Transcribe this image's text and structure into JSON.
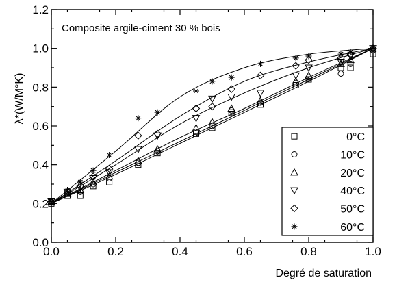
{
  "chart_data": {
    "type": "scatter",
    "title": "Composite argile-ciment 30 % bois",
    "xlabel": "Degré de saturation",
    "ylabel": "λ*(W/M°K)",
    "xlim": [
      0.0,
      1.0
    ],
    "ylim": [
      0.0,
      1.2
    ],
    "x_ticks": [
      0.0,
      0.2,
      0.4,
      0.6,
      0.8,
      1.0
    ],
    "y_ticks": [
      0.0,
      0.2,
      0.4,
      0.6,
      0.8,
      1.0,
      1.2
    ],
    "x_tick_labels": [
      "0.0",
      "0.2",
      "0.4",
      "0.6",
      "0.8",
      "1.0"
    ],
    "y_tick_labels": [
      "0.0",
      "0.2",
      "0.4",
      "0.6",
      "0.8",
      "1.0",
      "1.2"
    ],
    "legend_position": "bottom-right",
    "grid": false,
    "series": [
      {
        "name": "0°C",
        "marker": "square",
        "points": [
          [
            0.0,
            0.2
          ],
          [
            0.05,
            0.24
          ],
          [
            0.09,
            0.24
          ],
          [
            0.13,
            0.29
          ],
          [
            0.18,
            0.31
          ],
          [
            0.27,
            0.4
          ],
          [
            0.33,
            0.46
          ],
          [
            0.45,
            0.56
          ],
          [
            0.5,
            0.59
          ],
          [
            0.56,
            0.67
          ],
          [
            0.65,
            0.71
          ],
          [
            0.76,
            0.81
          ],
          [
            0.8,
            0.84
          ],
          [
            0.9,
            0.9
          ],
          [
            0.93,
            0.9
          ],
          [
            1.0,
            0.97
          ]
        ],
        "fit": [
          [
            0.0,
            0.2
          ],
          [
            0.2,
            0.35
          ],
          [
            0.4,
            0.51
          ],
          [
            0.6,
            0.67
          ],
          [
            0.8,
            0.83
          ],
          [
            1.0,
            1.0
          ]
        ]
      },
      {
        "name": "10°C",
        "marker": "circle",
        "points": [
          [
            0.0,
            0.21
          ],
          [
            0.05,
            0.25
          ],
          [
            0.09,
            0.26
          ],
          [
            0.13,
            0.3
          ],
          [
            0.18,
            0.33
          ],
          [
            0.27,
            0.41
          ],
          [
            0.33,
            0.47
          ],
          [
            0.45,
            0.57
          ],
          [
            0.5,
            0.6
          ],
          [
            0.56,
            0.68
          ],
          [
            0.65,
            0.72
          ],
          [
            0.76,
            0.82
          ],
          [
            0.8,
            0.85
          ],
          [
            0.9,
            0.87
          ],
          [
            0.93,
            0.92
          ],
          [
            1.0,
            0.99
          ]
        ],
        "fit": [
          [
            0.0,
            0.2
          ],
          [
            0.2,
            0.36
          ],
          [
            0.4,
            0.52
          ],
          [
            0.6,
            0.68
          ],
          [
            0.8,
            0.84
          ],
          [
            1.0,
            1.0
          ]
        ]
      },
      {
        "name": "20°C",
        "marker": "triangle-up",
        "points": [
          [
            0.0,
            0.21
          ],
          [
            0.05,
            0.25
          ],
          [
            0.09,
            0.27
          ],
          [
            0.13,
            0.31
          ],
          [
            0.18,
            0.34
          ],
          [
            0.27,
            0.42
          ],
          [
            0.33,
            0.48
          ],
          [
            0.45,
            0.59
          ],
          [
            0.5,
            0.62
          ],
          [
            0.56,
            0.69
          ],
          [
            0.65,
            0.73
          ],
          [
            0.76,
            0.83
          ],
          [
            0.8,
            0.86
          ],
          [
            0.9,
            0.92
          ],
          [
            0.93,
            0.94
          ],
          [
            1.0,
            1.0
          ]
        ],
        "fit": [
          [
            0.0,
            0.2
          ],
          [
            0.2,
            0.37
          ],
          [
            0.4,
            0.54
          ],
          [
            0.6,
            0.69
          ],
          [
            0.8,
            0.85
          ],
          [
            1.0,
            1.0
          ]
        ]
      },
      {
        "name": "40°C",
        "marker": "triangle-down",
        "points": [
          [
            0.0,
            0.21
          ],
          [
            0.05,
            0.26
          ],
          [
            0.09,
            0.28
          ],
          [
            0.13,
            0.33
          ],
          [
            0.18,
            0.36
          ],
          [
            0.27,
            0.48
          ],
          [
            0.33,
            0.55
          ],
          [
            0.45,
            0.64
          ],
          [
            0.5,
            0.74
          ],
          [
            0.56,
            0.75
          ],
          [
            0.65,
            0.77
          ],
          [
            0.76,
            0.86
          ],
          [
            0.8,
            0.9
          ],
          [
            0.9,
            0.93
          ],
          [
            0.93,
            0.96
          ],
          [
            1.0,
            1.0
          ]
        ],
        "fit": [
          [
            0.0,
            0.2
          ],
          [
            0.2,
            0.4
          ],
          [
            0.4,
            0.61
          ],
          [
            0.6,
            0.77
          ],
          [
            0.8,
            0.9
          ],
          [
            1.0,
            1.0
          ]
        ]
      },
      {
        "name": "50°C",
        "marker": "diamond",
        "points": [
          [
            0.0,
            0.21
          ],
          [
            0.05,
            0.26
          ],
          [
            0.09,
            0.29
          ],
          [
            0.13,
            0.34
          ],
          [
            0.18,
            0.38
          ],
          [
            0.27,
            0.55
          ],
          [
            0.33,
            0.56
          ],
          [
            0.45,
            0.69
          ],
          [
            0.5,
            0.7
          ],
          [
            0.56,
            0.79
          ],
          [
            0.65,
            0.86
          ],
          [
            0.76,
            0.91
          ],
          [
            0.8,
            0.94
          ],
          [
            0.9,
            0.95
          ],
          [
            0.93,
            0.97
          ],
          [
            1.0,
            1.0
          ]
        ],
        "fit": [
          [
            0.0,
            0.2
          ],
          [
            0.2,
            0.42
          ],
          [
            0.4,
            0.65
          ],
          [
            0.6,
            0.83
          ],
          [
            0.8,
            0.93
          ],
          [
            1.0,
            1.0
          ]
        ]
      },
      {
        "name": "60°C",
        "marker": "asterisk",
        "points": [
          [
            0.0,
            0.21
          ],
          [
            0.05,
            0.27
          ],
          [
            0.09,
            0.31
          ],
          [
            0.13,
            0.37
          ],
          [
            0.18,
            0.45
          ],
          [
            0.27,
            0.64
          ],
          [
            0.33,
            0.67
          ],
          [
            0.45,
            0.78
          ],
          [
            0.5,
            0.83
          ],
          [
            0.56,
            0.85
          ],
          [
            0.65,
            0.92
          ],
          [
            0.76,
            0.95
          ],
          [
            0.8,
            0.96
          ],
          [
            0.9,
            0.97
          ],
          [
            0.93,
            0.98
          ],
          [
            1.0,
            1.0
          ]
        ],
        "fit": [
          [
            0.0,
            0.2
          ],
          [
            0.2,
            0.47
          ],
          [
            0.4,
            0.75
          ],
          [
            0.6,
            0.9
          ],
          [
            0.8,
            0.97
          ],
          [
            1.0,
            1.0
          ]
        ]
      }
    ]
  }
}
